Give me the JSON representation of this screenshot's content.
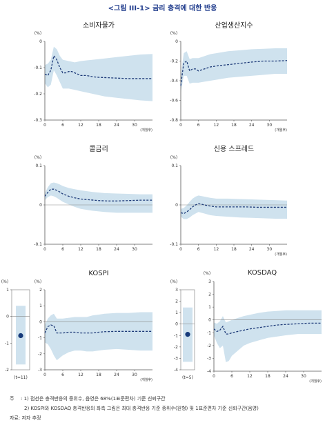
{
  "figure": {
    "title": "<그림 III-1> 금리 충격에 대한 반응",
    "notes": {
      "prefix": "주",
      "line1": ": 1) 점선은 충격반응의 중위수, 음영은 68%(1표준편차) 기준 신뢰구간",
      "line2": "2) KOSPI와 KOSDAQ 충격반응의 좌측 그림은 최대 충격반응 기준 중위수(원형) 및 1표준편차 기준 신뢰구간(음영)",
      "source": "자료: 저자 추정"
    }
  },
  "colors": {
    "band": "#cfe2ee",
    "median": "#1d3a78",
    "axis": "#555555",
    "dot": "#163a7a"
  },
  "chart_data": [
    {
      "type": "line",
      "title": "소비자물가",
      "unit": "(%)",
      "xunit": "(개월후)",
      "ylim": [
        -0.3,
        0
      ],
      "yticks": [
        0,
        -0.1,
        -0.2,
        -0.3
      ],
      "ytick_labels": [
        "0",
        "-0.1",
        "-0.2",
        "-0.3"
      ],
      "xlim": [
        0,
        36
      ],
      "xticks": [
        0,
        6,
        12,
        18,
        24,
        30
      ],
      "zero_line": false,
      "median": [
        [
          0,
          -0.125
        ],
        [
          1,
          -0.13
        ],
        [
          2,
          -0.11
        ],
        [
          3,
          -0.055
        ],
        [
          4,
          -0.07
        ],
        [
          5,
          -0.1
        ],
        [
          6,
          -0.12
        ],
        [
          7,
          -0.12
        ],
        [
          8,
          -0.115
        ],
        [
          9,
          -0.115
        ],
        [
          10,
          -0.12
        ],
        [
          11,
          -0.125
        ],
        [
          12,
          -0.13
        ],
        [
          14,
          -0.13
        ],
        [
          16,
          -0.135
        ],
        [
          18,
          -0.137
        ],
        [
          20,
          -0.138
        ],
        [
          24,
          -0.14
        ],
        [
          28,
          -0.142
        ],
        [
          32,
          -0.142
        ],
        [
          36,
          -0.142
        ]
      ],
      "upper": [
        [
          0,
          -0.09
        ],
        [
          1,
          -0.085
        ],
        [
          2,
          -0.07
        ],
        [
          3,
          -0.02
        ],
        [
          4,
          -0.03
        ],
        [
          5,
          -0.055
        ],
        [
          6,
          -0.07
        ],
        [
          8,
          -0.075
        ],
        [
          10,
          -0.08
        ],
        [
          12,
          -0.075
        ],
        [
          16,
          -0.07
        ],
        [
          20,
          -0.065
        ],
        [
          24,
          -0.06
        ],
        [
          28,
          -0.055
        ],
        [
          32,
          -0.05
        ],
        [
          36,
          -0.048
        ]
      ],
      "lower": [
        [
          0,
          -0.16
        ],
        [
          1,
          -0.175
        ],
        [
          2,
          -0.165
        ],
        [
          3,
          -0.11
        ],
        [
          4,
          -0.13
        ],
        [
          5,
          -0.155
        ],
        [
          6,
          -0.18
        ],
        [
          8,
          -0.18
        ],
        [
          10,
          -0.185
        ],
        [
          12,
          -0.19
        ],
        [
          16,
          -0.2
        ],
        [
          20,
          -0.21
        ],
        [
          24,
          -0.215
        ],
        [
          28,
          -0.22
        ],
        [
          32,
          -0.225
        ],
        [
          36,
          -0.228
        ]
      ]
    },
    {
      "type": "line",
      "title": "산업생산지수",
      "unit": "(%)",
      "xunit": "(개월후)",
      "ylim": [
        -0.8,
        0
      ],
      "yticks": [
        0,
        -0.2,
        -0.4,
        -0.6,
        -0.8
      ],
      "ytick_labels": [
        "0",
        "-0.2",
        "-0.4",
        "-0.6",
        "-0.8"
      ],
      "xlim": [
        0,
        36
      ],
      "xticks": [
        0,
        6,
        12,
        18,
        24,
        30
      ],
      "zero_line": false,
      "median": [
        [
          0,
          -0.45
        ],
        [
          1,
          -0.22
        ],
        [
          2,
          -0.2
        ],
        [
          3,
          -0.3
        ],
        [
          4,
          -0.28
        ],
        [
          5,
          -0.28
        ],
        [
          6,
          -0.3
        ],
        [
          7,
          -0.29
        ],
        [
          8,
          -0.28
        ],
        [
          10,
          -0.26
        ],
        [
          12,
          -0.25
        ],
        [
          15,
          -0.24
        ],
        [
          18,
          -0.23
        ],
        [
          21,
          -0.22
        ],
        [
          24,
          -0.21
        ],
        [
          28,
          -0.2
        ],
        [
          32,
          -0.2
        ],
        [
          36,
          -0.195
        ]
      ],
      "upper": [
        [
          0,
          -0.35
        ],
        [
          1,
          -0.12
        ],
        [
          2,
          -0.1
        ],
        [
          3,
          -0.18
        ],
        [
          4,
          -0.17
        ],
        [
          5,
          -0.17
        ],
        [
          6,
          -0.17
        ],
        [
          8,
          -0.15
        ],
        [
          10,
          -0.13
        ],
        [
          12,
          -0.12
        ],
        [
          16,
          -0.1
        ],
        [
          20,
          -0.09
        ],
        [
          24,
          -0.08
        ],
        [
          28,
          -0.075
        ],
        [
          32,
          -0.07
        ],
        [
          36,
          -0.07
        ]
      ],
      "lower": [
        [
          0,
          -0.52
        ],
        [
          1,
          -0.35
        ],
        [
          2,
          -0.35
        ],
        [
          3,
          -0.43
        ],
        [
          4,
          -0.42
        ],
        [
          5,
          -0.42
        ],
        [
          6,
          -0.42
        ],
        [
          8,
          -0.41
        ],
        [
          10,
          -0.4
        ],
        [
          12,
          -0.39
        ],
        [
          16,
          -0.37
        ],
        [
          20,
          -0.36
        ],
        [
          24,
          -0.35
        ],
        [
          28,
          -0.34
        ],
        [
          32,
          -0.33
        ],
        [
          36,
          -0.33
        ]
      ]
    },
    {
      "type": "line",
      "title": "콜금리",
      "unit": "(%)",
      "xunit": "",
      "ylim": [
        -0.1,
        0.1
      ],
      "yticks": [
        0.1,
        0,
        -0.1
      ],
      "ytick_labels": [
        "0.1",
        "0",
        "-0.1"
      ],
      "xlim": [
        0,
        36
      ],
      "xticks": [
        0,
        6,
        12,
        18,
        24,
        30
      ],
      "zero_line": true,
      "median": [
        [
          0,
          0.022
        ],
        [
          1,
          0.032
        ],
        [
          2,
          0.04
        ],
        [
          3,
          0.04
        ],
        [
          4,
          0.037
        ],
        [
          5,
          0.033
        ],
        [
          6,
          0.028
        ],
        [
          8,
          0.022
        ],
        [
          10,
          0.018
        ],
        [
          12,
          0.015
        ],
        [
          15,
          0.013
        ],
        [
          18,
          0.011
        ],
        [
          21,
          0.01
        ],
        [
          24,
          0.01
        ],
        [
          28,
          0.011
        ],
        [
          32,
          0.012
        ],
        [
          36,
          0.012
        ]
      ],
      "upper": [
        [
          0,
          0.03
        ],
        [
          1,
          0.045
        ],
        [
          2,
          0.055
        ],
        [
          3,
          0.057
        ],
        [
          4,
          0.055
        ],
        [
          5,
          0.052
        ],
        [
          6,
          0.048
        ],
        [
          8,
          0.043
        ],
        [
          10,
          0.04
        ],
        [
          12,
          0.037
        ],
        [
          16,
          0.033
        ],
        [
          20,
          0.03
        ],
        [
          24,
          0.029
        ],
        [
          28,
          0.028
        ],
        [
          32,
          0.027
        ],
        [
          36,
          0.027
        ]
      ],
      "lower": [
        [
          0,
          0.012
        ],
        [
          1,
          0.02
        ],
        [
          2,
          0.024
        ],
        [
          3,
          0.022
        ],
        [
          4,
          0.018
        ],
        [
          5,
          0.013
        ],
        [
          6,
          0.008
        ],
        [
          8,
          0.001
        ],
        [
          10,
          -0.005
        ],
        [
          12,
          -0.01
        ],
        [
          16,
          -0.015
        ],
        [
          20,
          -0.018
        ],
        [
          24,
          -0.02
        ],
        [
          28,
          -0.02
        ],
        [
          32,
          -0.02
        ],
        [
          36,
          -0.02
        ]
      ]
    },
    {
      "type": "line",
      "title": "신용 스프레드",
      "unit": "(%)",
      "xunit": "(개월후)",
      "ylim": [
        -0.1,
        0.1
      ],
      "yticks": [
        0.1,
        0,
        -0.1
      ],
      "ytick_labels": [
        "0.1",
        "0",
        "-0.1"
      ],
      "xlim": [
        0,
        36
      ],
      "xticks": [
        0,
        6,
        12,
        18,
        24,
        30
      ],
      "zero_line": true,
      "median": [
        [
          0,
          -0.02
        ],
        [
          1,
          -0.022
        ],
        [
          2,
          -0.018
        ],
        [
          3,
          -0.012
        ],
        [
          4,
          -0.005
        ],
        [
          5,
          0
        ],
        [
          6,
          0.003
        ],
        [
          7,
          0.002
        ],
        [
          8,
          0
        ],
        [
          10,
          -0.003
        ],
        [
          12,
          -0.005
        ],
        [
          15,
          -0.005
        ],
        [
          18,
          -0.005
        ],
        [
          22,
          -0.005
        ],
        [
          26,
          -0.006
        ],
        [
          30,
          -0.006
        ],
        [
          36,
          -0.006
        ]
      ],
      "upper": [
        [
          0,
          -0.01
        ],
        [
          1,
          -0.008
        ],
        [
          2,
          -0.001
        ],
        [
          3,
          0.008
        ],
        [
          4,
          0.016
        ],
        [
          5,
          0.021
        ],
        [
          6,
          0.024
        ],
        [
          8,
          0.021
        ],
        [
          10,
          0.018
        ],
        [
          12,
          0.016
        ],
        [
          16,
          0.016
        ],
        [
          20,
          0.015
        ],
        [
          24,
          0.014
        ],
        [
          28,
          0.013
        ],
        [
          32,
          0.012
        ],
        [
          36,
          0.011
        ]
      ],
      "lower": [
        [
          0,
          -0.03
        ],
        [
          1,
          -0.036
        ],
        [
          2,
          -0.036
        ],
        [
          3,
          -0.032
        ],
        [
          4,
          -0.026
        ],
        [
          5,
          -0.022
        ],
        [
          6,
          -0.018
        ],
        [
          8,
          -0.022
        ],
        [
          10,
          -0.026
        ],
        [
          12,
          -0.028
        ],
        [
          16,
          -0.03
        ],
        [
          20,
          -0.032
        ],
        [
          24,
          -0.033
        ],
        [
          28,
          -0.034
        ],
        [
          32,
          -0.035
        ],
        [
          36,
          -0.035
        ]
      ]
    },
    {
      "type": "line",
      "title": "KOSPI",
      "unit": "(%)",
      "xunit": "(개월후)",
      "ylim": [
        -3,
        2
      ],
      "yticks": [
        2,
        1,
        0,
        -1,
        -2,
        -3
      ],
      "ytick_labels": [
        "2",
        "1",
        "0",
        "-1",
        "-2",
        "-3"
      ],
      "xlim": [
        0,
        36
      ],
      "xticks": [
        0,
        6,
        12,
        18,
        24,
        30
      ],
      "zero_line": true,
      "median": [
        [
          0,
          -0.7
        ],
        [
          1,
          -0.3
        ],
        [
          2,
          -0.2
        ],
        [
          3,
          -0.25
        ],
        [
          4,
          -0.7
        ],
        [
          6,
          -0.7
        ],
        [
          8,
          -0.65
        ],
        [
          10,
          -0.65
        ],
        [
          12,
          -0.7
        ],
        [
          14,
          -0.7
        ],
        [
          16,
          -0.7
        ],
        [
          18,
          -0.65
        ],
        [
          20,
          -0.62
        ],
        [
          24,
          -0.6
        ],
        [
          28,
          -0.6
        ],
        [
          32,
          -0.6
        ],
        [
          36,
          -0.6
        ]
      ],
      "upper": [
        [
          0,
          -0.2
        ],
        [
          1,
          0.2
        ],
        [
          2,
          0.4
        ],
        [
          3,
          0.5
        ],
        [
          4,
          0.2
        ],
        [
          6,
          0.2
        ],
        [
          8,
          0.25
        ],
        [
          10,
          0.3
        ],
        [
          12,
          0.3
        ],
        [
          14,
          0.3
        ],
        [
          16,
          0.4
        ],
        [
          18,
          0.45
        ],
        [
          20,
          0.5
        ],
        [
          24,
          0.55
        ],
        [
          28,
          0.55
        ],
        [
          32,
          0.6
        ],
        [
          36,
          0.6
        ]
      ],
      "lower": [
        [
          0,
          -1.3
        ],
        [
          1,
          -1.4
        ],
        [
          2,
          -1.7
        ],
        [
          3,
          -2.1
        ],
        [
          4,
          -2.4
        ],
        [
          6,
          -2.1
        ],
        [
          8,
          -1.9
        ],
        [
          10,
          -1.8
        ],
        [
          12,
          -1.8
        ],
        [
          14,
          -1.85
        ],
        [
          16,
          -1.85
        ],
        [
          18,
          -1.8
        ],
        [
          20,
          -1.75
        ],
        [
          24,
          -1.7
        ],
        [
          28,
          -1.75
        ],
        [
          32,
          -1.8
        ],
        [
          36,
          -1.8
        ]
      ]
    },
    {
      "type": "line",
      "title": "KOSDAQ",
      "unit": "(%)",
      "xunit": "(개월후)",
      "ylim": [
        -4,
        3
      ],
      "yticks": [
        3,
        2,
        1,
        0,
        -1,
        -2,
        -3,
        -4
      ],
      "ytick_labels": [
        "3",
        "2",
        "1",
        "0",
        "-1",
        "-2",
        "-3",
        "-4"
      ],
      "xlim": [
        0,
        36
      ],
      "xticks": [
        0,
        6,
        12,
        18,
        24,
        30
      ],
      "zero_line": true,
      "median": [
        [
          0,
          -0.7
        ],
        [
          1,
          -0.9
        ],
        [
          2,
          -0.8
        ],
        [
          3,
          -0.5
        ],
        [
          4,
          -1.1
        ],
        [
          5,
          -1.1
        ],
        [
          6,
          -1
        ],
        [
          8,
          -0.9
        ],
        [
          10,
          -0.8
        ],
        [
          12,
          -0.7
        ],
        [
          15,
          -0.6
        ],
        [
          18,
          -0.5
        ],
        [
          21,
          -0.4
        ],
        [
          24,
          -0.35
        ],
        [
          28,
          -0.3
        ],
        [
          32,
          -0.25
        ],
        [
          36,
          -0.25
        ]
      ],
      "upper": [
        [
          0,
          -0.2
        ],
        [
          1,
          -0.3
        ],
        [
          2,
          -0.1
        ],
        [
          3,
          0.3
        ],
        [
          4,
          -0.2
        ],
        [
          5,
          -0.1
        ],
        [
          6,
          0
        ],
        [
          8,
          0.15
        ],
        [
          10,
          0.3
        ],
        [
          12,
          0.4
        ],
        [
          15,
          0.55
        ],
        [
          18,
          0.65
        ],
        [
          21,
          0.7
        ],
        [
          24,
          0.75
        ],
        [
          28,
          0.75
        ],
        [
          32,
          0.75
        ],
        [
          36,
          0.75
        ]
      ],
      "lower": [
        [
          0,
          -1.2
        ],
        [
          1,
          -1.8
        ],
        [
          2,
          -2.2
        ],
        [
          3,
          -2
        ],
        [
          4,
          -3.3
        ],
        [
          5,
          -3.2
        ],
        [
          6,
          -2.8
        ],
        [
          8,
          -2.4
        ],
        [
          10,
          -2
        ],
        [
          12,
          -1.8
        ],
        [
          15,
          -1.6
        ],
        [
          18,
          -1.4
        ],
        [
          21,
          -1.3
        ],
        [
          24,
          -1.2
        ],
        [
          28,
          -1.1
        ],
        [
          32,
          -1.1
        ],
        [
          36,
          -1.1
        ]
      ]
    },
    {
      "type": "scatter",
      "title": "",
      "unit": "(%)",
      "category": "(t=11)",
      "ylim": [
        -2,
        1
      ],
      "yticks": [
        1,
        0,
        -1,
        -2
      ],
      "ytick_labels": [
        "1",
        "0",
        "-1",
        "-2"
      ],
      "point": -0.72,
      "band": [
        0.4,
        -1.8
      ]
    },
    {
      "type": "scatter",
      "title": "",
      "unit": "(%)",
      "category": "(t=5)",
      "ylim": [
        -4,
        3
      ],
      "yticks": [
        3,
        2,
        1,
        0,
        -1,
        -2,
        -3,
        -4
      ],
      "ytick_labels": [
        "3",
        "2",
        "1",
        "0",
        "-1",
        "-2",
        "-3",
        "-4"
      ],
      "point": -0.9,
      "band": [
        1.45,
        -3.3
      ]
    }
  ]
}
